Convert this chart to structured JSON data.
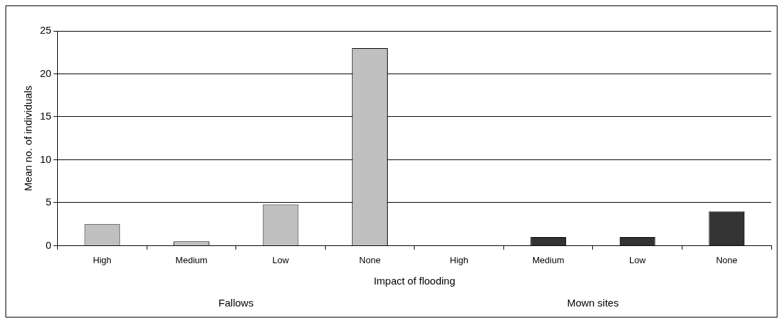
{
  "chart_data": {
    "type": "bar",
    "xlabel": "Impact of flooding",
    "ylabel": "Mean no. of individuals",
    "categories": [
      "High",
      "Medium",
      "Low",
      "None",
      "High",
      "Medium",
      "Low",
      "None"
    ],
    "values": [
      2.5,
      0.5,
      4.8,
      23,
      0,
      1,
      1,
      4
    ],
    "colors": [
      "#c0c0c0",
      "#c0c0c0",
      "#c0c0c0",
      "#c0c0c0",
      "#333333",
      "#333333",
      "#333333",
      "#333333"
    ],
    "annotations": [
      "Fallows",
      "Mown sites"
    ],
    "ylim": [
      0,
      25
    ],
    "yticks": [
      0,
      5,
      10,
      15,
      20,
      25
    ],
    "grid": "y",
    "legend": false
  }
}
